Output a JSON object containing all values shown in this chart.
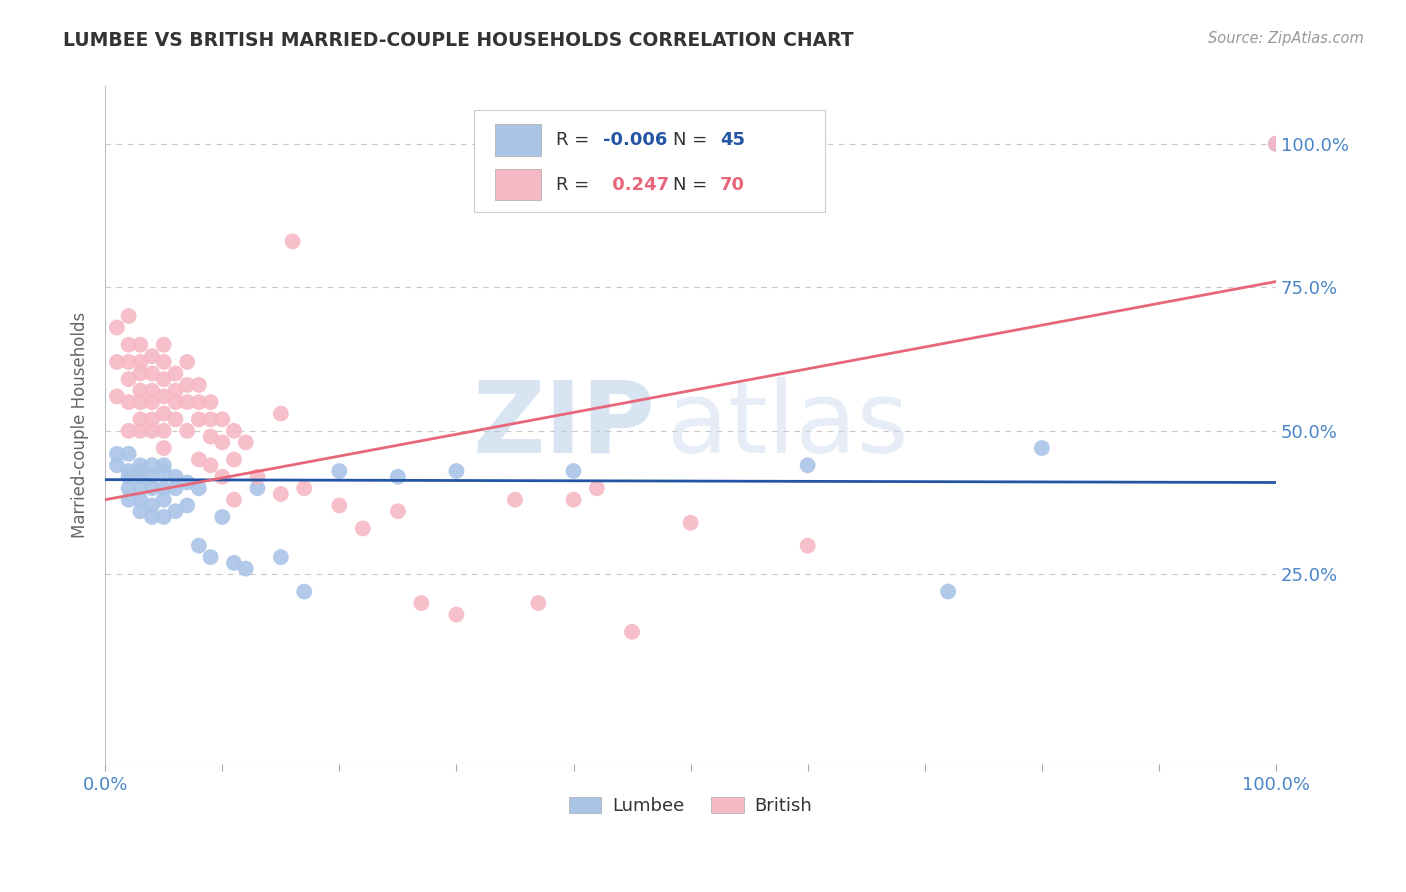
{
  "title": "LUMBEE VS BRITISH MARRIED-COUPLE HOUSEHOLDS CORRELATION CHART",
  "source": "Source: ZipAtlas.com",
  "ylabel": "Married-couple Households",
  "xlim": [
    0,
    1.0
  ],
  "ylim": [
    -0.08,
    1.1
  ],
  "lumbee_R": -0.006,
  "lumbee_N": 45,
  "british_R": 0.247,
  "british_N": 70,
  "lumbee_color": "#aac4e8",
  "british_color": "#f5b8c4",
  "lumbee_line_color": "#2455a4",
  "british_line_color": "#e8667a",
  "background_color": "#ffffff",
  "grid_color": "#c8c8c8",
  "title_color": "#333333",
  "axis_label_color": "#4a86c8",
  "watermark_zip": "ZIP",
  "watermark_atlas": "atlas",
  "lumbee_x": [
    0.01,
    0.01,
    0.02,
    0.02,
    0.02,
    0.02,
    0.02,
    0.03,
    0.03,
    0.03,
    0.03,
    0.03,
    0.03,
    0.04,
    0.04,
    0.04,
    0.04,
    0.04,
    0.05,
    0.05,
    0.05,
    0.05,
    0.05,
    0.06,
    0.06,
    0.06,
    0.07,
    0.07,
    0.08,
    0.08,
    0.09,
    0.1,
    0.11,
    0.12,
    0.13,
    0.15,
    0.17,
    0.2,
    0.25,
    0.3,
    0.4,
    0.6,
    0.72,
    0.8,
    1.0
  ],
  "lumbee_y": [
    0.44,
    0.46,
    0.46,
    0.42,
    0.4,
    0.38,
    0.43,
    0.44,
    0.43,
    0.42,
    0.4,
    0.38,
    0.36,
    0.44,
    0.42,
    0.4,
    0.37,
    0.35,
    0.43,
    0.4,
    0.38,
    0.35,
    0.44,
    0.42,
    0.4,
    0.36,
    0.41,
    0.37,
    0.4,
    0.3,
    0.28,
    0.35,
    0.27,
    0.26,
    0.4,
    0.28,
    0.22,
    0.43,
    0.42,
    0.43,
    0.43,
    0.44,
    0.22,
    0.47,
    1.0
  ],
  "british_x": [
    0.01,
    0.01,
    0.01,
    0.02,
    0.02,
    0.02,
    0.02,
    0.02,
    0.02,
    0.03,
    0.03,
    0.03,
    0.03,
    0.03,
    0.03,
    0.03,
    0.04,
    0.04,
    0.04,
    0.04,
    0.04,
    0.04,
    0.05,
    0.05,
    0.05,
    0.05,
    0.05,
    0.05,
    0.05,
    0.06,
    0.06,
    0.06,
    0.06,
    0.07,
    0.07,
    0.07,
    0.07,
    0.08,
    0.08,
    0.08,
    0.08,
    0.09,
    0.09,
    0.09,
    0.09,
    0.1,
    0.1,
    0.1,
    0.11,
    0.11,
    0.11,
    0.12,
    0.13,
    0.15,
    0.15,
    0.16,
    0.17,
    0.2,
    0.22,
    0.25,
    0.27,
    0.3,
    0.35,
    0.37,
    0.4,
    0.42,
    0.45,
    0.5,
    0.6,
    1.0
  ],
  "british_y": [
    0.68,
    0.62,
    0.56,
    0.7,
    0.65,
    0.62,
    0.59,
    0.55,
    0.5,
    0.65,
    0.62,
    0.6,
    0.57,
    0.55,
    0.52,
    0.5,
    0.63,
    0.6,
    0.57,
    0.55,
    0.52,
    0.5,
    0.65,
    0.62,
    0.59,
    0.56,
    0.53,
    0.5,
    0.47,
    0.6,
    0.57,
    0.55,
    0.52,
    0.62,
    0.58,
    0.55,
    0.5,
    0.58,
    0.55,
    0.52,
    0.45,
    0.55,
    0.52,
    0.49,
    0.44,
    0.52,
    0.48,
    0.42,
    0.5,
    0.45,
    0.38,
    0.48,
    0.42,
    0.53,
    0.39,
    0.83,
    0.4,
    0.37,
    0.33,
    0.36,
    0.2,
    0.18,
    0.38,
    0.2,
    0.38,
    0.4,
    0.15,
    0.34,
    0.3,
    1.0
  ],
  "lumbee_line_intercept": 0.415,
  "lumbee_line_slope": -0.005,
  "british_line_x0": 0.0,
  "british_line_y0": 0.38,
  "british_line_x1": 1.0,
  "british_line_y1": 0.76
}
